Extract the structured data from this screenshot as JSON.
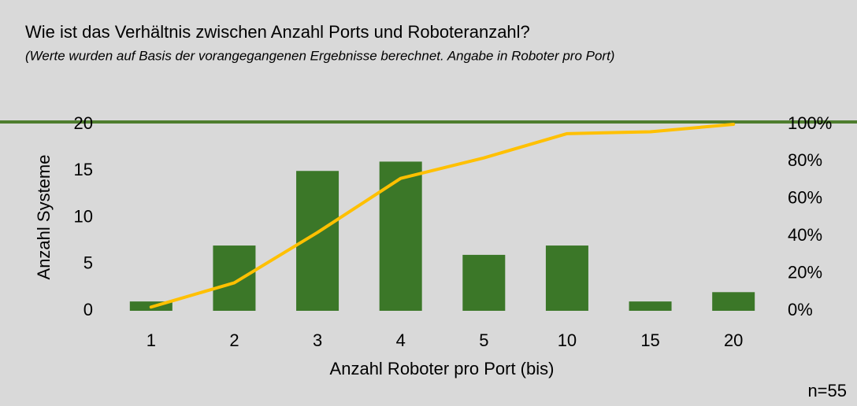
{
  "chart_data": {
    "type": "bar",
    "title": "Wie ist das Verhältnis zwischen Anzahl Ports und Roboteranzahl?",
    "subtitle": "(Werte wurden auf Basis der vorangegangenen Ergebnisse berechnet. Angabe in Roboter pro Port)",
    "x_label": "Anzahl Roboter pro Port (bis)",
    "y_label": "Anzahl Systeme",
    "annotation": "n=55",
    "categories": [
      "1",
      "2",
      "3",
      "4",
      "5",
      "10",
      "15",
      "20"
    ],
    "series": [
      {
        "type": "bar",
        "color": "#3b7728",
        "values": [
          1,
          7,
          15,
          16,
          6,
          7,
          1,
          2
        ]
      },
      {
        "type": "line",
        "axis": "y2",
        "color": "#ffc000",
        "values": [
          2,
          15,
          42,
          71,
          82,
          95,
          96,
          100
        ]
      }
    ],
    "ylim": [
      0,
      20
    ],
    "yticks": [
      0,
      5,
      10,
      15,
      20
    ],
    "y2lim": [
      0,
      100
    ],
    "y2ticks": [
      {
        "value": 0,
        "label": "0%"
      },
      {
        "value": 20,
        "label": "20%"
      },
      {
        "value": 40,
        "label": "40%"
      },
      {
        "value": 60,
        "label": "60%"
      },
      {
        "value": 80,
        "label": "80%"
      },
      {
        "value": 100,
        "label": "100%"
      }
    ],
    "grid": false
  }
}
